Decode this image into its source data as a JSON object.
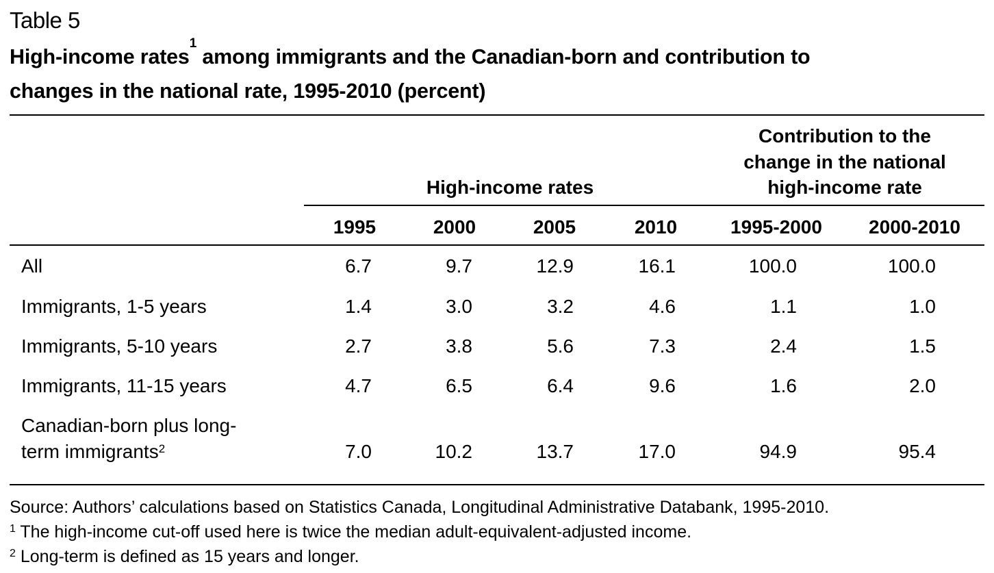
{
  "table_label": "Table 5",
  "title": {
    "part1": "High-income rates",
    "footnote_ref": "1",
    "part2": " among immigrants and the Canadian-born and contribution to",
    "line2": "changes in the national rate, 1995-2010 (percent)"
  },
  "header": {
    "group_rates": "High-income rates",
    "group_contribution_lines": [
      "Contribution to the",
      "change in the national",
      "high-income rate"
    ],
    "columns": [
      "1995",
      "2000",
      "2005",
      "2010",
      "1995-2000",
      "2000-2010"
    ]
  },
  "rows": [
    {
      "label": "All",
      "values": [
        "6.7",
        "9.7",
        "12.9",
        "16.1",
        "100.0",
        "100.0"
      ]
    },
    {
      "label": "Immigrants, 1-5 years",
      "values": [
        "1.4",
        "3.0",
        "3.2",
        "4.6",
        "1.1",
        "1.0"
      ]
    },
    {
      "label": "Immigrants, 5-10 years",
      "values": [
        "2.7",
        "3.8",
        "5.6",
        "7.3",
        "2.4",
        "1.5"
      ]
    },
    {
      "label": "Immigrants, 11-15 years",
      "values": [
        "4.7",
        "6.5",
        "6.4",
        "9.6",
        "1.6",
        "2.0"
      ]
    },
    {
      "label_line1": "Canadian-born plus long-",
      "label_line2": "term immigrants",
      "footnote_ref": "2",
      "values": [
        "7.0",
        "10.2",
        "13.7",
        "17.0",
        "94.9",
        "95.4"
      ]
    }
  ],
  "footnotes": {
    "source": "Source: Authors’ calculations based on Statistics Canada, Longitudinal Administrative Databank, 1995-2010.",
    "note1_ref": "1",
    "note1": " The high-income cut-off used here is twice the median adult-equivalent-adjusted income.",
    "note2_ref": "2",
    "note2": " Long-term is defined as 15 years and longer."
  }
}
